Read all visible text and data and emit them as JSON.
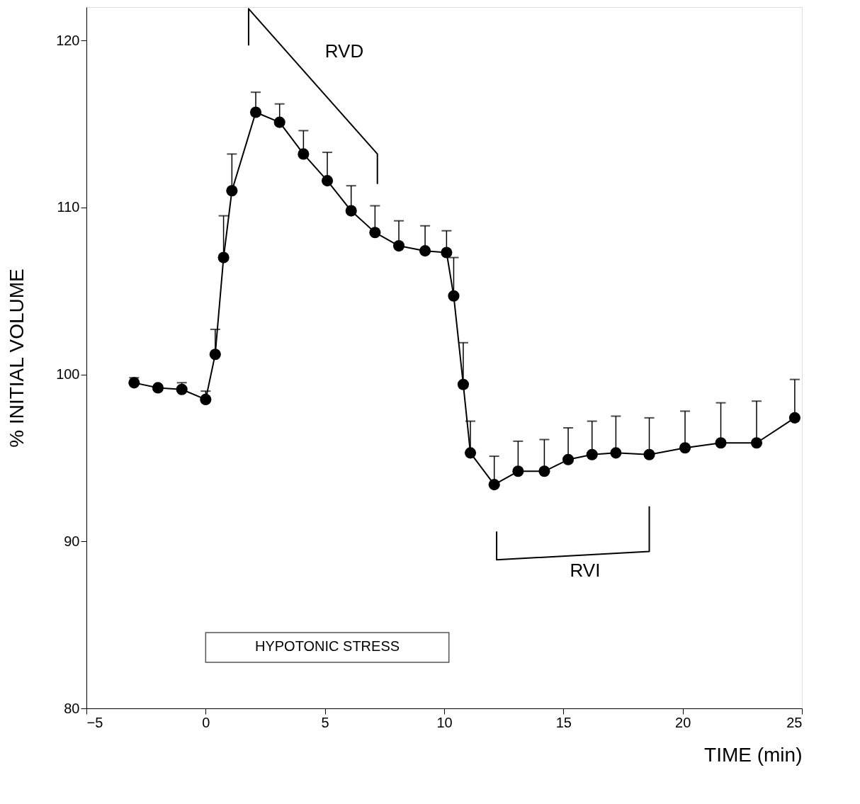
{
  "chart_data": {
    "type": "line",
    "xlabel": "TIME (min)",
    "ylabel": "% INITIAL VOLUME",
    "xlim": [
      -5,
      25
    ],
    "xticks": [
      -5,
      0,
      5,
      10,
      15,
      20,
      25
    ],
    "ylim": [
      80,
      122
    ],
    "yticks": [
      80,
      90,
      100,
      110,
      120
    ],
    "grid": false,
    "marker": "circle",
    "line_style": "solid",
    "series": [
      {
        "color": "#000000",
        "x": [
          -3,
          -2,
          -1,
          0,
          0.4,
          0.75,
          1.1,
          2.1,
          3.1,
          4.1,
          5.1,
          6.1,
          7.1,
          8.1,
          9.2,
          10.1,
          10.4,
          10.8,
          11.1,
          12.1,
          13.1,
          14.2,
          15.2,
          16.2,
          17.2,
          18.6,
          20.1,
          21.6,
          23.1,
          24.7
        ],
        "values": [
          99.5,
          99.2,
          99.1,
          98.5,
          101.2,
          107.0,
          111.0,
          115.7,
          115.1,
          113.2,
          111.6,
          109.8,
          108.5,
          107.7,
          107.4,
          107.3,
          104.7,
          99.4,
          95.3,
          93.4,
          94.2,
          94.2,
          94.9,
          95.2,
          95.3,
          95.2,
          95.6,
          95.9,
          95.9,
          97.4
        ],
        "errors": [
          [
            99.5,
            99.8
          ],
          null,
          [
            99.1,
            99.5
          ],
          [
            98.5,
            99.0
          ],
          [
            101.2,
            102.7
          ],
          [
            107.0,
            109.5
          ],
          [
            111.0,
            113.2
          ],
          [
            115.7,
            116.9
          ],
          [
            115.1,
            116.2
          ],
          [
            113.2,
            114.6
          ],
          [
            111.6,
            113.3
          ],
          [
            109.8,
            111.3
          ],
          [
            108.5,
            110.1
          ],
          [
            107.7,
            109.2
          ],
          [
            107.4,
            108.9
          ],
          [
            107.3,
            108.6
          ],
          [
            104.7,
            107.0
          ],
          [
            99.4,
            101.9
          ],
          [
            95.3,
            97.2
          ],
          [
            93.4,
            95.1
          ],
          [
            94.2,
            96.0
          ],
          [
            94.2,
            96.1
          ],
          [
            94.9,
            96.8
          ],
          [
            95.2,
            97.2
          ],
          [
            95.3,
            97.5
          ],
          [
            95.2,
            97.4
          ],
          [
            95.6,
            97.8
          ],
          [
            95.9,
            98.3
          ],
          [
            95.9,
            98.4
          ],
          [
            97.4,
            99.7
          ]
        ]
      },
      {
        "color": "#000000",
        "marker": "none",
        "x": [
          1.8,
          1.8,
          7.2,
          7.2
        ],
        "values": [
          119.7,
          121.9,
          113.2,
          111.4
        ]
      },
      {
        "color": "#000000",
        "marker": "none",
        "x": [
          12.2,
          12.2,
          18.6,
          18.6
        ],
        "values": [
          90.6,
          88.9,
          89.4,
          92.1
        ]
      }
    ],
    "bands": [
      {
        "axis": "x",
        "from": 0,
        "to": 10.2,
        "label": "HYPOTONIC STRESS",
        "color": "#ffffff"
      }
    ],
    "annotations": [
      "RVD",
      "RVI"
    ]
  }
}
